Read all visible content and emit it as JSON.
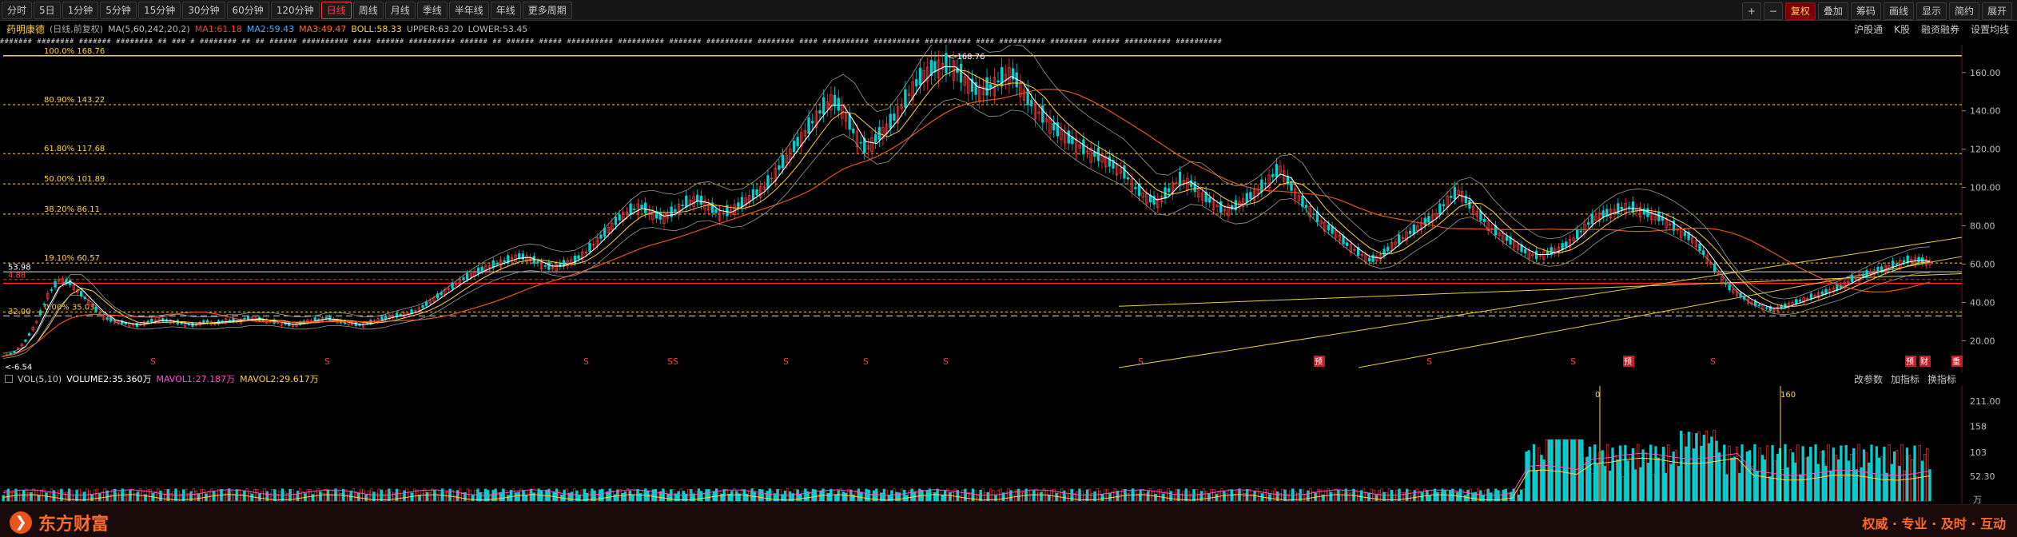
{
  "toolbar": {
    "periods": [
      "分时",
      "5日",
      "1分钟",
      "5分钟",
      "15分钟",
      "30分钟",
      "60分钟",
      "120分钟",
      "日线",
      "周线",
      "月线",
      "季线",
      "半年线",
      "年线",
      "更多周期"
    ],
    "active": "日线",
    "right_buttons": [
      "+",
      "−",
      "复权",
      "叠加",
      "筹码",
      "画线",
      "显示",
      "简约",
      "展开"
    ]
  },
  "indicator_row": {
    "stock_name": "药明康德",
    "period_info": "(日线,前复权)",
    "ma_label": "MA(5,60,242,20,2)",
    "ma1": "MA1:61.18",
    "ma2": "MA2:59.43",
    "ma3": "MA3:49.47",
    "boll": "BOLL:58.33",
    "upper": "UPPER:63.20",
    "lower": "LOWER:53.45",
    "right_links": [
      "沪股通",
      "K股",
      "融资融券",
      "设置均线"
    ]
  },
  "ticker_text": "#######  ######## #######  ########  ##  ###  #  ######## ## ## ######  ########## ####  ######  ########## ###### ## ######  ##### ########## ########## ####### ########## ######## #### ########## ########## ########## #### ########## ######## ###### ########## ##########",
  "colors": {
    "up": "#ff3b3b",
    "down": "#00d2d2",
    "ma1": "#ffffff",
    "ma2": "#ffd24a",
    "ma3": "#e8541c",
    "fib": "#ffd24a",
    "grid": "#2a1010"
  },
  "chart_data": {
    "type": "candlestick",
    "y_axis_ticks": [
      "160.00",
      "140.00",
      "120.00",
      "100.00",
      "80.00",
      "60.00",
      "40.00",
      "20.00"
    ],
    "ylim": [
      6,
      172
    ],
    "fib_levels": [
      {
        "label": "100.0% 168.76",
        "value": 168.76
      },
      {
        "label": "80.90% 143.22",
        "value": 143.22
      },
      {
        "label": "61.80% 117.68",
        "value": 117.68
      },
      {
        "label": "50.00% 101.89",
        "value": 101.89
      },
      {
        "label": "38.20% 86.11",
        "value": 86.11
      },
      {
        "label": "19.10% 60.57",
        "value": 60.57
      },
      {
        "label": "0.00% 35.03",
        "value": 35.03
      }
    ],
    "annotations": {
      "high": "168.76",
      "low": "6.54",
      "left_marker": "53.98",
      "level_a": "32.00",
      "level_b": "4.88"
    },
    "event_markers": [
      "S",
      "S",
      "S",
      "SS",
      "S",
      "S",
      "S",
      "S",
      "预",
      "S",
      "S",
      "预",
      "S",
      "预",
      "财",
      "重"
    ],
    "close_path": [
      12,
      14,
      20,
      30,
      44,
      52,
      50,
      44,
      38,
      32,
      30,
      29,
      28,
      30,
      31,
      30,
      29,
      28,
      30,
      29,
      31,
      30,
      32,
      31,
      30,
      29,
      28,
      30,
      31,
      32,
      30,
      29,
      28,
      30,
      32,
      33,
      34,
      36,
      40,
      44,
      48,
      52,
      55,
      58,
      60,
      62,
      64,
      63,
      60,
      58,
      60,
      62,
      66,
      72,
      78,
      84,
      88,
      90,
      86,
      84,
      88,
      92,
      94,
      90,
      86,
      88,
      92,
      96,
      100,
      108,
      116,
      124,
      132,
      140,
      146,
      140,
      128,
      120,
      126,
      132,
      140,
      150,
      158,
      162,
      164,
      162,
      155,
      150,
      152,
      156,
      160,
      150,
      142,
      136,
      130,
      126,
      122,
      118,
      116,
      112,
      108,
      100,
      95,
      92,
      98,
      104,
      102,
      96,
      92,
      88,
      90,
      94,
      98,
      104,
      110,
      100,
      92,
      86,
      80,
      76,
      70,
      66,
      62,
      64,
      70,
      74,
      78,
      82,
      86,
      94,
      98,
      90,
      84,
      78,
      74,
      70,
      66,
      64,
      66,
      68,
      72,
      78,
      84,
      86,
      88,
      90,
      88,
      86,
      84,
      80,
      76,
      72,
      64,
      56,
      48,
      44,
      40,
      38,
      36,
      38,
      40,
      42,
      44,
      46,
      48,
      52,
      54,
      56,
      58,
      60,
      62,
      62,
      61
    ],
    "ma_series": [
      {
        "name": "MA1",
        "value": "61.18"
      },
      {
        "name": "MA2",
        "value": "59.43"
      },
      {
        "name": "MA3",
        "value": "49.47"
      }
    ],
    "volume": {
      "label": "VOL(5,10)",
      "volume": "VOLUME2:35.360万",
      "mavol1": "MAVOL1:27.187万",
      "mavol2": "MAVOL2:29.617万",
      "y_ticks": [
        "211.00",
        "158",
        "103",
        "52.30",
        "万"
      ],
      "ylim": [
        0,
        230
      ],
      "spike_labels": [
        "0",
        "160"
      ]
    }
  },
  "volume_links": [
    "改参数",
    "加指标",
    "换指标"
  ],
  "footer": {
    "brand": "东方财富",
    "slogan": "权威 · 专业 · 及时 · 互动"
  }
}
